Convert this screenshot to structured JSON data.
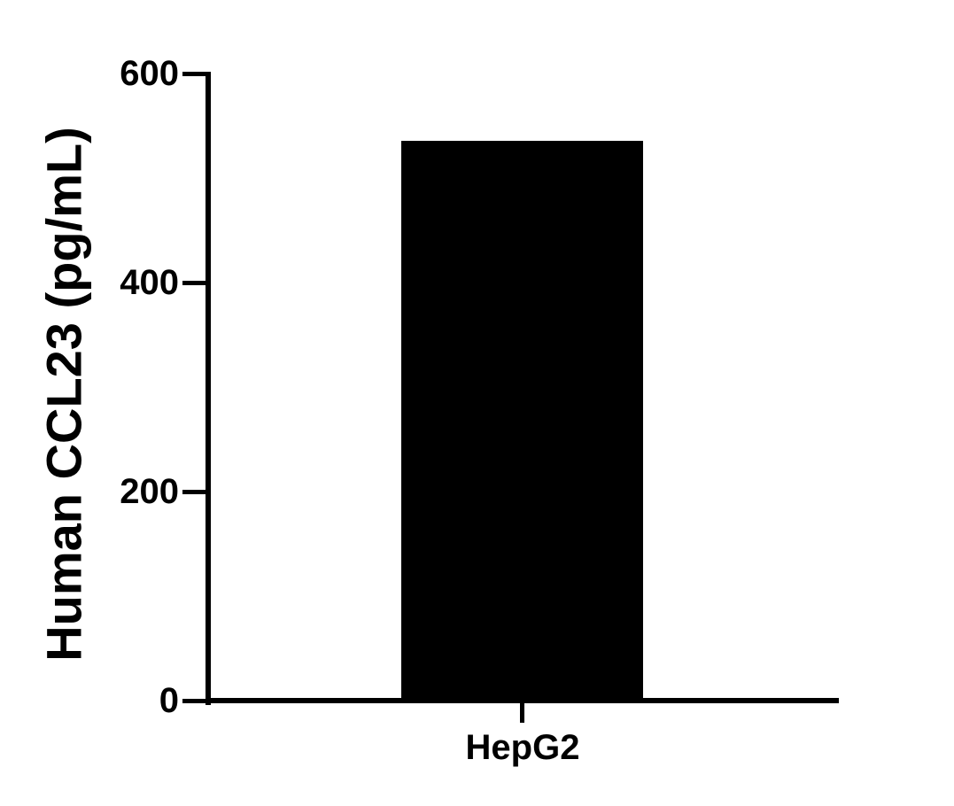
{
  "figure": {
    "background_color": "#ffffff",
    "ink_color": "#000000"
  },
  "chart_data": {
    "type": "bar",
    "title": "",
    "categories": [
      "HepG2"
    ],
    "values": [
      536
    ],
    "series_name": "Human CCL23",
    "xlabel": "",
    "ylabel": "Human CCL23 (pg/mL)",
    "ylim": [
      0,
      600
    ],
    "yticks": [
      0,
      200,
      400,
      600
    ],
    "ytick_labels": [
      "0",
      "200",
      "400",
      "600"
    ],
    "bar_color": "#000000",
    "grid": false,
    "legend_position": "none"
  }
}
